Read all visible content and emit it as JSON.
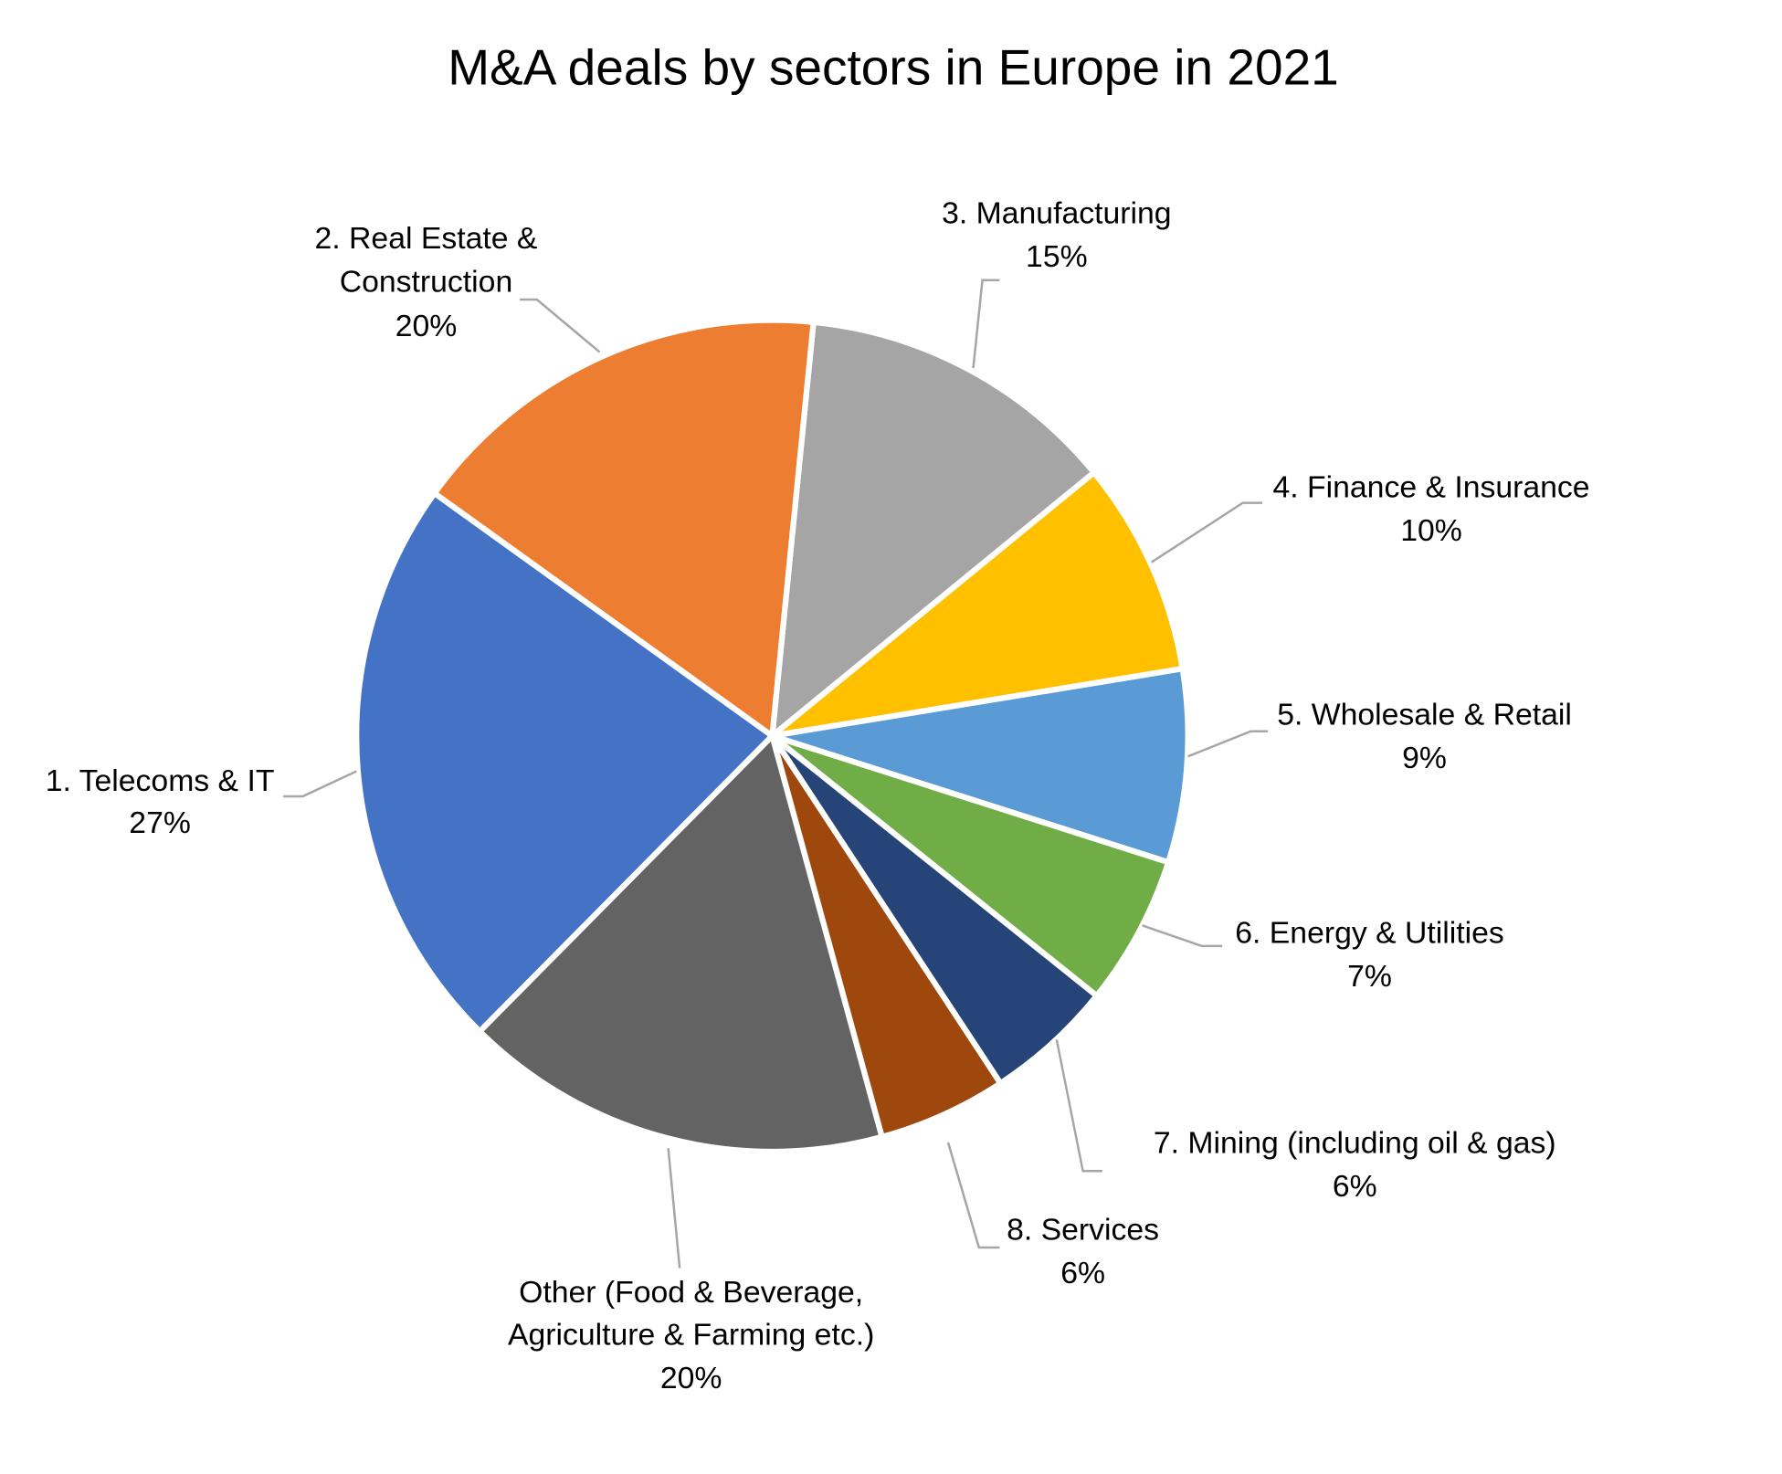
{
  "chart_data": {
    "type": "pie",
    "title": "M&A deals by sectors in Europe in 2021",
    "slices": [
      {
        "label_lines": [
          "3. Manufacturing"
        ],
        "value_label": "15%",
        "value": 15,
        "color": "#a5a5a5"
      },
      {
        "label_lines": [
          "4. Finance & Insurance"
        ],
        "value_label": "10%",
        "value": 10,
        "color": "#ffc000"
      },
      {
        "label_lines": [
          "5. Wholesale & Retail"
        ],
        "value_label": "9%",
        "value": 9,
        "color": "#5b9bd5"
      },
      {
        "label_lines": [
          "6. Energy & Utilities"
        ],
        "value_label": "7%",
        "value": 7,
        "color": "#70ad47"
      },
      {
        "label_lines": [
          "7. Mining (including oil & gas)"
        ],
        "value_label": "6%",
        "value": 6,
        "color": "#264478"
      },
      {
        "label_lines": [
          "8. Services"
        ],
        "value_label": "6%",
        "value": 6,
        "color": "#9e480e"
      },
      {
        "label_lines": [
          "Other (Food & Beverage,",
          "Agriculture & Farming etc.)"
        ],
        "value_label": "20%",
        "value": 20,
        "color": "#636363"
      },
      {
        "label_lines": [
          "1. Telecoms & IT"
        ],
        "value_label": "27%",
        "value": 27,
        "color": "#4472c4"
      },
      {
        "label_lines": [
          "2. Real Estate &",
          "Construction"
        ],
        "value_label": "20%",
        "value": 20,
        "color": "#ed7d31"
      }
    ],
    "legend": "none",
    "data_labels": "outside-with-leader-lines"
  }
}
